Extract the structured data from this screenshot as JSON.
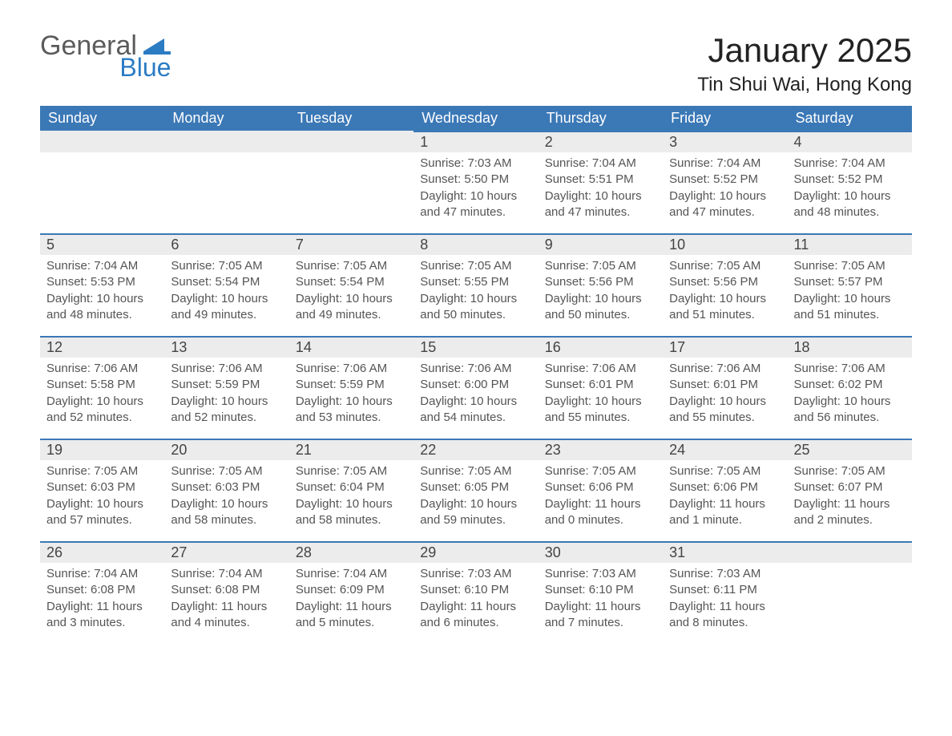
{
  "logo": {
    "word1": "General",
    "word2": "Blue"
  },
  "title": "January 2025",
  "location": "Tin Shui Wai, Hong Kong",
  "weekdays": [
    "Sunday",
    "Monday",
    "Tuesday",
    "Wednesday",
    "Thursday",
    "Friday",
    "Saturday"
  ],
  "colors": {
    "header_blue": "#3b78b6",
    "accent_blue": "#2c7cc4",
    "cell_grey": "#ececec",
    "text_dark": "#333333",
    "page_bg": "#ffffff"
  },
  "layout": {
    "columns": 7,
    "rows": 5,
    "first_week_leading_blanks": 3
  },
  "days": [
    {
      "n": 1,
      "sunrise": "7:03 AM",
      "sunset": "5:50 PM",
      "daylight": "10 hours and 47 minutes."
    },
    {
      "n": 2,
      "sunrise": "7:04 AM",
      "sunset": "5:51 PM",
      "daylight": "10 hours and 47 minutes."
    },
    {
      "n": 3,
      "sunrise": "7:04 AM",
      "sunset": "5:52 PM",
      "daylight": "10 hours and 47 minutes."
    },
    {
      "n": 4,
      "sunrise": "7:04 AM",
      "sunset": "5:52 PM",
      "daylight": "10 hours and 48 minutes."
    },
    {
      "n": 5,
      "sunrise": "7:04 AM",
      "sunset": "5:53 PM",
      "daylight": "10 hours and 48 minutes."
    },
    {
      "n": 6,
      "sunrise": "7:05 AM",
      "sunset": "5:54 PM",
      "daylight": "10 hours and 49 minutes."
    },
    {
      "n": 7,
      "sunrise": "7:05 AM",
      "sunset": "5:54 PM",
      "daylight": "10 hours and 49 minutes."
    },
    {
      "n": 8,
      "sunrise": "7:05 AM",
      "sunset": "5:55 PM",
      "daylight": "10 hours and 50 minutes."
    },
    {
      "n": 9,
      "sunrise": "7:05 AM",
      "sunset": "5:56 PM",
      "daylight": "10 hours and 50 minutes."
    },
    {
      "n": 10,
      "sunrise": "7:05 AM",
      "sunset": "5:56 PM",
      "daylight": "10 hours and 51 minutes."
    },
    {
      "n": 11,
      "sunrise": "7:05 AM",
      "sunset": "5:57 PM",
      "daylight": "10 hours and 51 minutes."
    },
    {
      "n": 12,
      "sunrise": "7:06 AM",
      "sunset": "5:58 PM",
      "daylight": "10 hours and 52 minutes."
    },
    {
      "n": 13,
      "sunrise": "7:06 AM",
      "sunset": "5:59 PM",
      "daylight": "10 hours and 52 minutes."
    },
    {
      "n": 14,
      "sunrise": "7:06 AM",
      "sunset": "5:59 PM",
      "daylight": "10 hours and 53 minutes."
    },
    {
      "n": 15,
      "sunrise": "7:06 AM",
      "sunset": "6:00 PM",
      "daylight": "10 hours and 54 minutes."
    },
    {
      "n": 16,
      "sunrise": "7:06 AM",
      "sunset": "6:01 PM",
      "daylight": "10 hours and 55 minutes."
    },
    {
      "n": 17,
      "sunrise": "7:06 AM",
      "sunset": "6:01 PM",
      "daylight": "10 hours and 55 minutes."
    },
    {
      "n": 18,
      "sunrise": "7:06 AM",
      "sunset": "6:02 PM",
      "daylight": "10 hours and 56 minutes."
    },
    {
      "n": 19,
      "sunrise": "7:05 AM",
      "sunset": "6:03 PM",
      "daylight": "10 hours and 57 minutes."
    },
    {
      "n": 20,
      "sunrise": "7:05 AM",
      "sunset": "6:03 PM",
      "daylight": "10 hours and 58 minutes."
    },
    {
      "n": 21,
      "sunrise": "7:05 AM",
      "sunset": "6:04 PM",
      "daylight": "10 hours and 58 minutes."
    },
    {
      "n": 22,
      "sunrise": "7:05 AM",
      "sunset": "6:05 PM",
      "daylight": "10 hours and 59 minutes."
    },
    {
      "n": 23,
      "sunrise": "7:05 AM",
      "sunset": "6:06 PM",
      "daylight": "11 hours and 0 minutes."
    },
    {
      "n": 24,
      "sunrise": "7:05 AM",
      "sunset": "6:06 PM",
      "daylight": "11 hours and 1 minute."
    },
    {
      "n": 25,
      "sunrise": "7:05 AM",
      "sunset": "6:07 PM",
      "daylight": "11 hours and 2 minutes."
    },
    {
      "n": 26,
      "sunrise": "7:04 AM",
      "sunset": "6:08 PM",
      "daylight": "11 hours and 3 minutes."
    },
    {
      "n": 27,
      "sunrise": "7:04 AM",
      "sunset": "6:08 PM",
      "daylight": "11 hours and 4 minutes."
    },
    {
      "n": 28,
      "sunrise": "7:04 AM",
      "sunset": "6:09 PM",
      "daylight": "11 hours and 5 minutes."
    },
    {
      "n": 29,
      "sunrise": "7:03 AM",
      "sunset": "6:10 PM",
      "daylight": "11 hours and 6 minutes."
    },
    {
      "n": 30,
      "sunrise": "7:03 AM",
      "sunset": "6:10 PM",
      "daylight": "11 hours and 7 minutes."
    },
    {
      "n": 31,
      "sunrise": "7:03 AM",
      "sunset": "6:11 PM",
      "daylight": "11 hours and 8 minutes."
    }
  ],
  "labels": {
    "sunrise": "Sunrise:",
    "sunset": "Sunset:",
    "daylight": "Daylight:"
  }
}
